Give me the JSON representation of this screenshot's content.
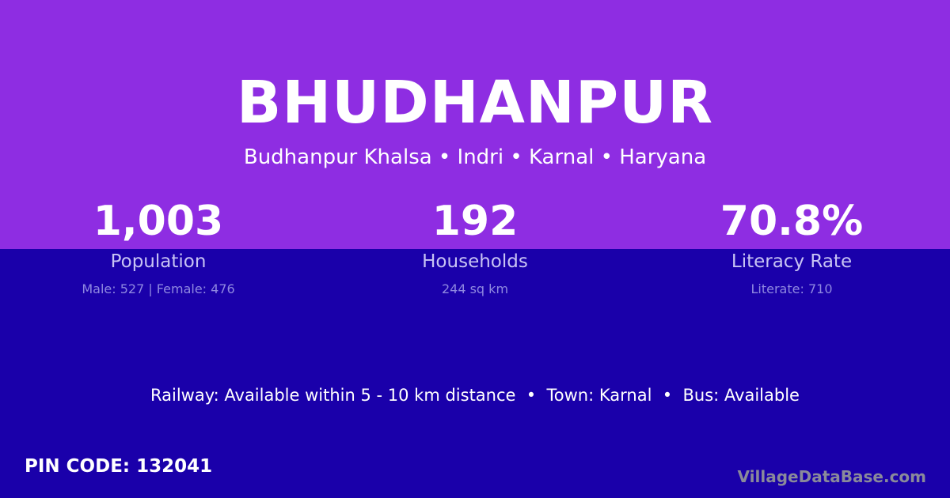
{
  "colors": {
    "top_background": "#8e2de2",
    "bottom_background": "#1a00aa"
  },
  "village": {
    "name": "BHUDHANPUR",
    "location": "Budhanpur Khalsa • Indri • Karnal • Haryana"
  },
  "stats": [
    {
      "value": "1,003",
      "label": "Population",
      "detail": "Male: 527 | Female: 476"
    },
    {
      "value": "192",
      "label": "Households",
      "detail": "244 sq km"
    },
    {
      "value": "70.8%",
      "label": "Literacy Rate",
      "detail": "Literate: 710"
    }
  ],
  "connectivity": "Railway: Available within 5 - 10 km distance  •  Town: Karnal  •  Bus: Available",
  "pin_code": "PIN CODE: 132041",
  "brand": "VillageDataBase.com"
}
